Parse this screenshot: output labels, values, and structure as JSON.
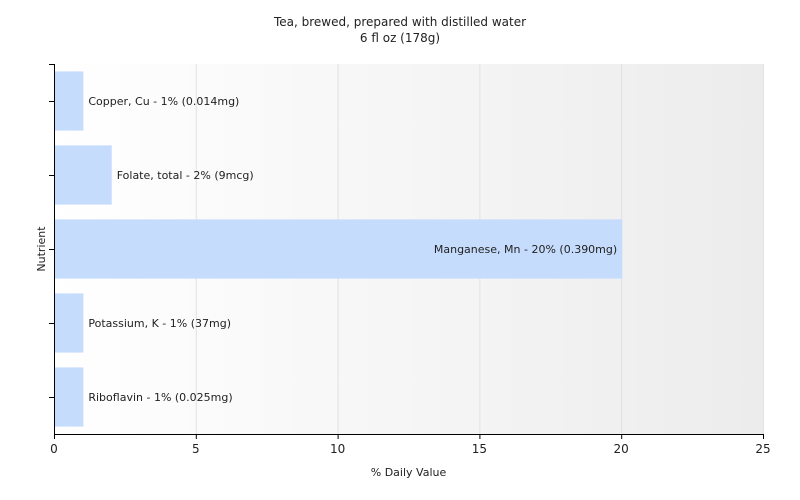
{
  "chart_data": {
    "type": "bar",
    "orientation": "horizontal",
    "title": "Tea, brewed, prepared with distilled water",
    "subtitle": "6 fl oz (178g)",
    "xlabel": "% Daily Value",
    "ylabel": "Nutrient",
    "xlim": [
      0,
      25
    ],
    "xticks": [
      0,
      5,
      10,
      15,
      20,
      25
    ],
    "grid": true,
    "bar_color": "#c6dcfd",
    "categories": [
      "Copper, Cu",
      "Folate, total",
      "Manganese, Mn",
      "Potassium, K",
      "Riboflavin"
    ],
    "values": [
      1,
      2,
      20,
      1,
      1
    ],
    "labels": [
      "Copper, Cu - 1% (0.014mg)",
      "Folate, total - 2% (9mcg)",
      "Manganese, Mn - 20% (0.390mg)",
      "Potassium, K - 1% (37mg)",
      "Riboflavin - 1% (0.025mg)"
    ]
  }
}
